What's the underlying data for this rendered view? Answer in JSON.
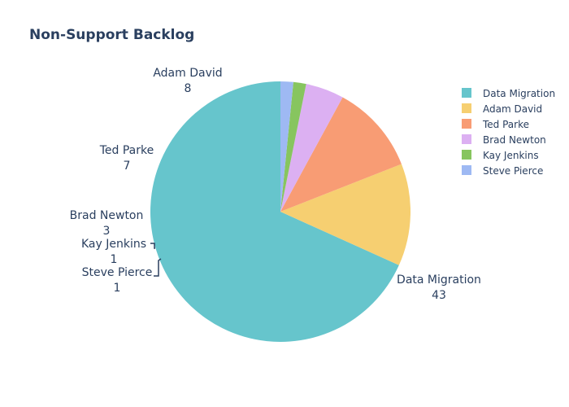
{
  "chart_data": {
    "type": "pie",
    "title": "Non-Support Backlog",
    "slices": [
      {
        "label": "Data Migration",
        "value": 43,
        "color": "#66c5cc"
      },
      {
        "label": "Adam David",
        "value": 8,
        "color": "#f6cf71"
      },
      {
        "label": "Ted Parke",
        "value": 7,
        "color": "#f89c74"
      },
      {
        "label": "Brad Newton",
        "value": 3,
        "color": "#dcb0f2"
      },
      {
        "label": "Kay Jenkins",
        "value": 1,
        "color": "#87c55f"
      },
      {
        "label": "Steve Pierce",
        "value": 1,
        "color": "#9eb9f3"
      }
    ],
    "legend_position": "top-right",
    "direction": "counterclockwise",
    "start_angle": "12 o'clock"
  }
}
